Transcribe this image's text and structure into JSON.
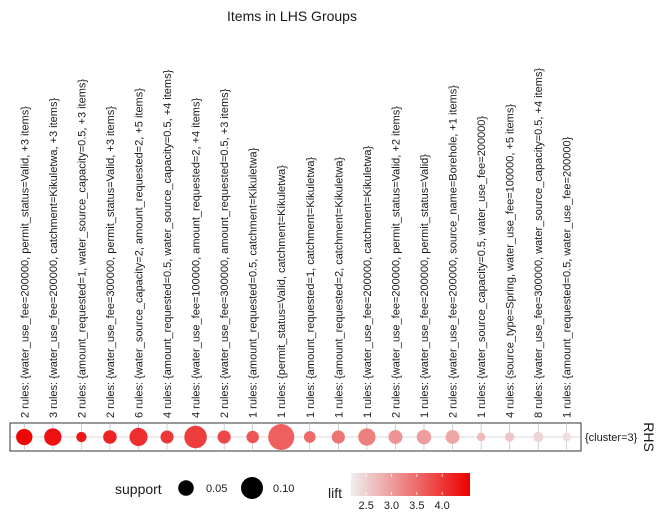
{
  "chart_data": {
    "type": "scatter",
    "title": "Items in LHS Groups",
    "rhs_title": "RHS",
    "y_categories": [
      "{cluster=3}"
    ],
    "x_categories": [
      "2 rules: {water_use_fee=200000, permit_status=Valid, +3 items}",
      "3 rules: {water_use_fee=200000, catchment=Kikuletwa, +3 items}",
      "2 rules: {amount_requested=1, water_source_capacity=0.5, +3 items}",
      "2 rules: {water_use_fee=300000, permit_status=Valid, +3 items}",
      "6 rules: {water_source_capacity=2, amount_requested=2, +5 items}",
      "4 rules: {amount_requested=0.5, water_source_capacity=0.5, +4 items}",
      "4 rules: {water_use_fee=100000, amount_requested=2, +4 items}",
      "2 rules: {water_use_fee=300000, amount_requested=0.5, +3 items}",
      "1 rules: {amount_requested=0.5, catchment=Kikuletwa}",
      "1 rules: {permit_status=Valid, catchment=Kikuletwa}",
      "1 rules: {amount_requested=1, catchment=Kikuletwa}",
      "1 rules: {amount_requested=2, catchment=Kikuletwa}",
      "1 rules: {water_use_fee=200000, catchment=Kikuletwa}",
      "2 rules: {water_use_fee=200000, permit_status=Valid, +2 items}",
      "1 rules: {water_use_fee=200000, permit_status=Valid}",
      "2 rules: {water_use_fee=200000, source_name=Borehole, +1 items}",
      "1 rules: {water_source_capacity=0.5, water_use_fee=200000}",
      "4 rules: {source_type=Spring, water_use_fee=100000, +5 items}",
      "8 rules: {water_use_fee=300000, water_source_capacity=0.5, +4 items}",
      "1 rules: {amount_requested=0.5, water_use_fee=200000}"
    ],
    "support": [
      0.055,
      0.062,
      0.022,
      0.038,
      0.068,
      0.035,
      0.105,
      0.036,
      0.032,
      0.14,
      0.028,
      0.036,
      0.062,
      0.04,
      0.044,
      0.04,
      0.015,
      0.018,
      0.022,
      0.016
    ],
    "lift": [
      4.5,
      4.4,
      4.3,
      4.2,
      4.1,
      4.0,
      3.95,
      3.85,
      3.7,
      3.6,
      3.5,
      3.4,
      3.3,
      3.1,
      3.0,
      2.9,
      2.7,
      2.6,
      2.45,
      2.35
    ],
    "size_legend": {
      "title": "support",
      "values": [
        0.05,
        0.1
      ],
      "labels": [
        "0.05",
        "0.10"
      ]
    },
    "color_legend": {
      "title": "lift",
      "range": [
        2.2,
        4.55
      ],
      "ticks": [
        2.5,
        3.0,
        3.5,
        4.0
      ],
      "tick_labels": [
        "2.5",
        "3.0",
        "3.5",
        "4.0"
      ],
      "color_low": "#eeeeee",
      "color_high": "#ee0000"
    },
    "grid": true,
    "legend_position": "bottom"
  }
}
